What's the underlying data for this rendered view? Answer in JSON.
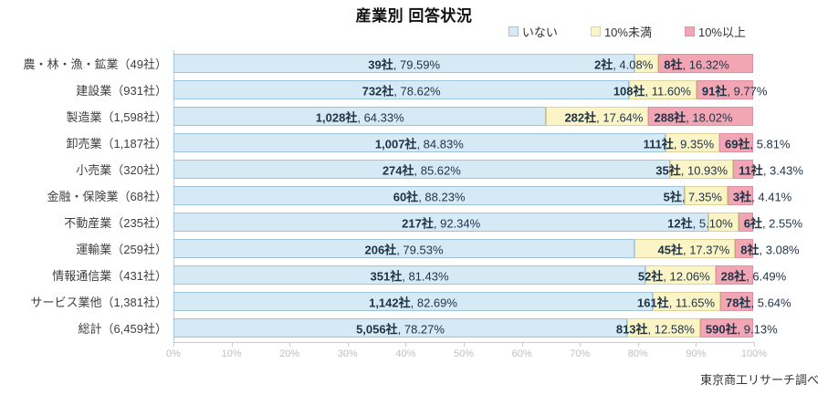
{
  "title": "産業別 回答状況",
  "source_note": "東京商工リサーチ調べ",
  "legend": [
    {
      "label": "いない",
      "fill": "#d6eaf6",
      "border": "#9fc3da"
    },
    {
      "label": "10%未満",
      "fill": "#faf4c6",
      "border": "#ddd398"
    },
    {
      "label": "10%以上",
      "fill": "#f2a6b4",
      "border": "#dd90a2"
    }
  ],
  "colors": {
    "axis_line": "#c6ccd1",
    "tick_label": "#c0c0c0",
    "segment_label": "#1e3246",
    "category_label": "#3f3f3f"
  },
  "chart_data": {
    "type": "bar",
    "orientation": "horizontal-stacked",
    "xlabel": "",
    "ylabel": "",
    "xlim": [
      0,
      100
    ],
    "x_ticks": [
      "0%",
      "10%",
      "20%",
      "30%",
      "40%",
      "50%",
      "60%",
      "70%",
      "80%",
      "90%",
      "100%"
    ],
    "series_names": [
      "いない",
      "10%未満",
      "10%以上"
    ],
    "rows": [
      {
        "category": "農・林・漁・鉱業（49社）",
        "segments": [
          {
            "count": "39社",
            "pct": "79.59%",
            "value": 79.59
          },
          {
            "count": "2社",
            "pct": "4.08%",
            "value": 4.08
          },
          {
            "count": "8社",
            "pct": "16.32%",
            "value": 16.32
          }
        ]
      },
      {
        "category": "建設業（931社）",
        "segments": [
          {
            "count": "732社",
            "pct": "78.62%",
            "value": 78.62
          },
          {
            "count": "108社",
            "pct": "11.60%",
            "value": 11.6
          },
          {
            "count": "91社",
            "pct": "9.77%",
            "value": 9.77
          }
        ]
      },
      {
        "category": "製造業（1,598社）",
        "segments": [
          {
            "count": "1,028社",
            "pct": "64.33%",
            "value": 64.33
          },
          {
            "count": "282社",
            "pct": "17.64%",
            "value": 17.64
          },
          {
            "count": "288社",
            "pct": "18.02%",
            "value": 18.02
          }
        ]
      },
      {
        "category": "卸売業（1,187社）",
        "segments": [
          {
            "count": "1,007社",
            "pct": "84.83%",
            "value": 84.83
          },
          {
            "count": "111社",
            "pct": "9.35%",
            "value": 9.35
          },
          {
            "count": "69社",
            "pct": "5.81%",
            "value": 5.81
          }
        ]
      },
      {
        "category": "小売業（320社）",
        "segments": [
          {
            "count": "274社",
            "pct": "85.62%",
            "value": 85.62
          },
          {
            "count": "35社",
            "pct": "10.93%",
            "value": 10.93
          },
          {
            "count": "11社",
            "pct": "3.43%",
            "value": 3.43
          }
        ]
      },
      {
        "category": "金融・保険業（68社）",
        "segments": [
          {
            "count": "60社",
            "pct": "88.23%",
            "value": 88.23
          },
          {
            "count": "5社",
            "pct": "7.35%",
            "value": 7.35
          },
          {
            "count": "3社",
            "pct": "4.41%",
            "value": 4.41
          }
        ]
      },
      {
        "category": "不動産業（235社）",
        "segments": [
          {
            "count": "217社",
            "pct": "92.34%",
            "value": 92.34
          },
          {
            "count": "12社",
            "pct": "5.10%",
            "value": 5.1
          },
          {
            "count": "6社",
            "pct": "2.55%",
            "value": 2.55
          }
        ]
      },
      {
        "category": "運輸業（259社）",
        "segments": [
          {
            "count": "206社",
            "pct": "79.53%",
            "value": 79.53
          },
          {
            "count": "45社",
            "pct": "17.37%",
            "value": 17.37
          },
          {
            "count": "8社",
            "pct": "3.08%",
            "value": 3.08
          }
        ]
      },
      {
        "category": "情報通信業（431社）",
        "segments": [
          {
            "count": "351社",
            "pct": "81.43%",
            "value": 81.43
          },
          {
            "count": "52社",
            "pct": "12.06%",
            "value": 12.06
          },
          {
            "count": "28社",
            "pct": "6.49%",
            "value": 6.49
          }
        ]
      },
      {
        "category": "サービス業他（1,381社）",
        "segments": [
          {
            "count": "1,142社",
            "pct": "82.69%",
            "value": 82.69
          },
          {
            "count": "161社",
            "pct": "11.65%",
            "value": 11.65
          },
          {
            "count": "78社",
            "pct": "5.64%",
            "value": 5.64
          }
        ]
      },
      {
        "category": "総計（6,459社）",
        "segments": [
          {
            "count": "5,056社",
            "pct": "78.27%",
            "value": 78.27
          },
          {
            "count": "813社",
            "pct": "12.58%",
            "value": 12.58
          },
          {
            "count": "590社",
            "pct": "9.13%",
            "value": 9.13
          }
        ]
      }
    ]
  }
}
